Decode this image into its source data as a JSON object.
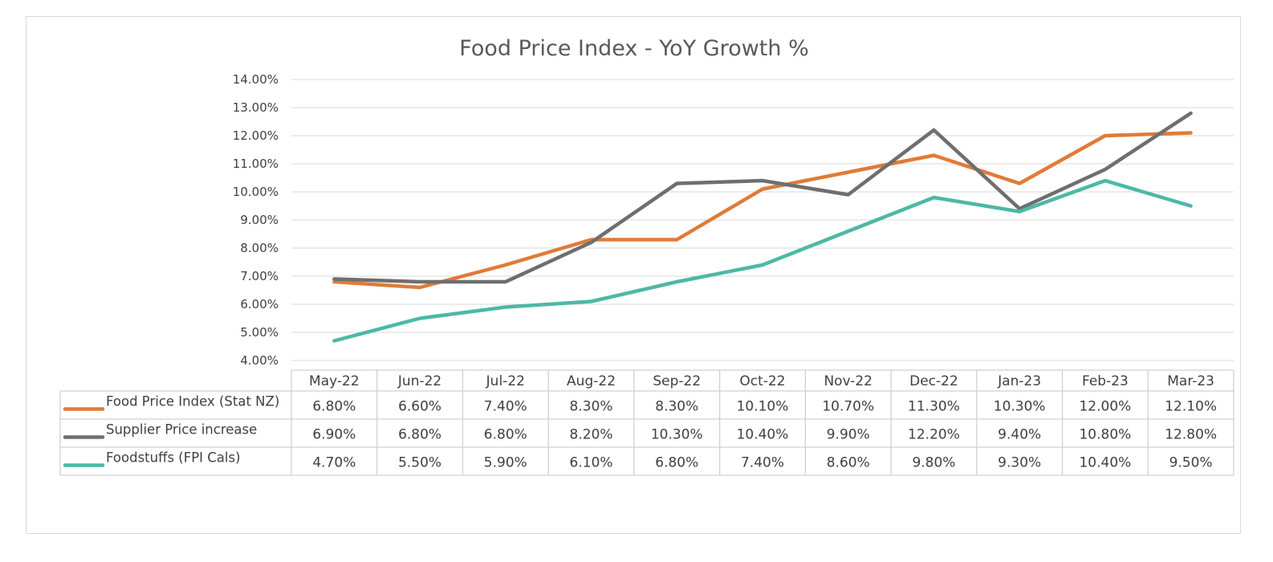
{
  "chart_data": {
    "type": "line",
    "title": "Food Price Index - YoY Growth %",
    "categories": [
      "May-22",
      "Jun-22",
      "Jul-22",
      "Aug-22",
      "Sep-22",
      "Oct-22",
      "Nov-22",
      "Dec-22",
      "Jan-23",
      "Feb-23",
      "Mar-23"
    ],
    "y_ticks": [
      "4.00%",
      "5.00%",
      "6.00%",
      "7.00%",
      "8.00%",
      "9.00%",
      "10.00%",
      "11.00%",
      "12.00%",
      "13.00%",
      "14.00%"
    ],
    "ylim": [
      4,
      14
    ],
    "grid": true,
    "legend": "data-table-below",
    "series": [
      {
        "name": "Food Price Index (Stat NZ)",
        "color": "#E07B39",
        "values": [
          6.8,
          6.6,
          7.4,
          8.3,
          8.3,
          10.1,
          10.7,
          11.3,
          10.3,
          12.0,
          12.1
        ],
        "labels": [
          "6.80%",
          "6.60%",
          "7.40%",
          "8.30%",
          "8.30%",
          "10.10%",
          "10.70%",
          "11.30%",
          "10.30%",
          "12.00%",
          "12.10%"
        ]
      },
      {
        "name": "Supplier Price increase",
        "color": "#6E6E6E",
        "values": [
          6.9,
          6.8,
          6.8,
          8.2,
          10.3,
          10.4,
          9.9,
          12.2,
          9.4,
          10.8,
          12.8
        ],
        "labels": [
          "6.90%",
          "6.80%",
          "6.80%",
          "8.20%",
          "10.30%",
          "10.40%",
          "9.90%",
          "12.20%",
          "9.40%",
          "10.80%",
          "12.80%"
        ]
      },
      {
        "name": "Foodstuffs (FPI Cals)",
        "color": "#4DB8A6",
        "values": [
          4.7,
          5.5,
          5.9,
          6.1,
          6.8,
          7.4,
          8.6,
          9.8,
          9.3,
          10.4,
          9.5
        ],
        "labels": [
          "4.70%",
          "5.50%",
          "5.90%",
          "6.10%",
          "6.80%",
          "7.40%",
          "8.60%",
          "9.80%",
          "9.30%",
          "10.40%",
          "9.50%"
        ]
      }
    ]
  }
}
